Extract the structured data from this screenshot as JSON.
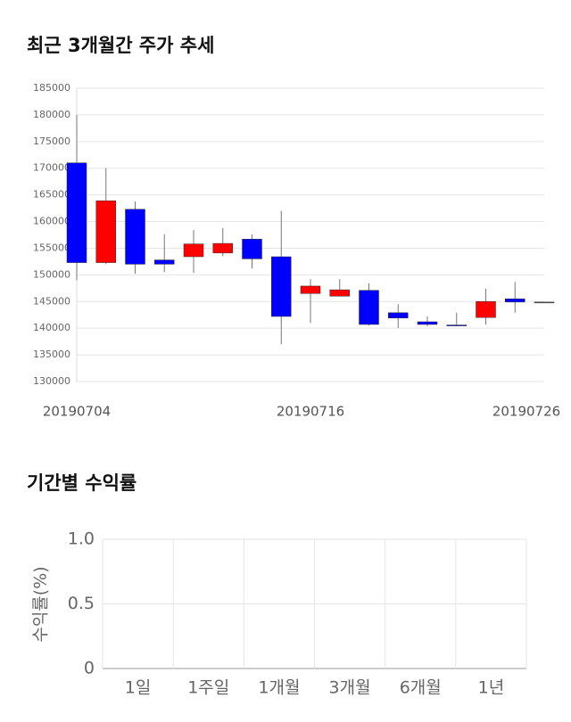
{
  "chart_data": [
    {
      "type": "candlestick",
      "title": "최근 3개월간 주가 추세",
      "categories": [
        "20190704",
        null,
        null,
        null,
        null,
        null,
        null,
        null,
        "20190716",
        null,
        null,
        null,
        null,
        null,
        null,
        null,
        "20190726"
      ],
      "open": [
        171000,
        152300,
        162300,
        152800,
        153400,
        154100,
        156700,
        153400,
        146500,
        146000,
        147100,
        142900,
        141200,
        140600,
        142000,
        145500,
        144900
      ],
      "high": [
        180000,
        170000,
        163800,
        157600,
        158400,
        158800,
        157600,
        162000,
        149200,
        149200,
        148400,
        144500,
        142200,
        142900,
        147400,
        148700,
        144900
      ],
      "low": [
        149000,
        152000,
        150200,
        150500,
        150400,
        153500,
        151200,
        137000,
        141000,
        146000,
        140500,
        140000,
        140400,
        140400,
        140700,
        142900,
        144900
      ],
      "close": [
        152300,
        163900,
        152000,
        152000,
        155800,
        155900,
        153000,
        142200,
        147900,
        147200,
        140700,
        141900,
        140700,
        140500,
        145000,
        144900,
        144900
      ],
      "up_color": "#ff0000",
      "down_color": "#0000ff",
      "ylim": [
        130000,
        185000
      ],
      "yticks": [
        130000,
        135000,
        140000,
        145000,
        150000,
        155000,
        160000,
        165000,
        170000,
        175000,
        180000,
        185000
      ],
      "grid": true
    },
    {
      "type": "bar",
      "title": "기간별 수익률",
      "ylabel": "수익률(%)",
      "categories": [
        "1일",
        "1주일",
        "1개월",
        "3개월",
        "6개월",
        "1년"
      ],
      "values": [
        null,
        null,
        null,
        null,
        null,
        null
      ],
      "ylim": [
        0,
        1
      ],
      "yticks": [
        0,
        0.5,
        {
          "value": 1,
          "label": "1.0"
        }
      ],
      "grid": true
    }
  ]
}
